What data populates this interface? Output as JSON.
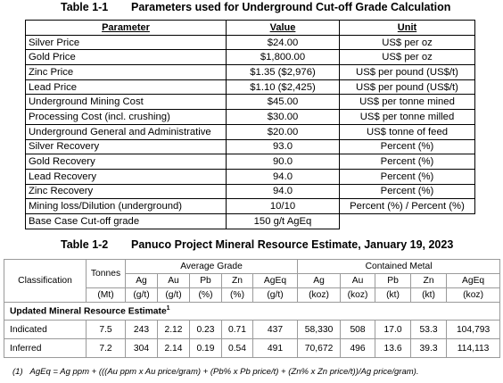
{
  "table1": {
    "label": "Table 1-1",
    "title": "Parameters used for Underground Cut-off Grade Calculation",
    "headers": [
      "Parameter",
      "Value",
      "Unit"
    ],
    "rows": [
      [
        "Silver Price",
        "$24.00",
        "US$ per oz"
      ],
      [
        "Gold Price",
        "$1,800.00",
        "US$ per oz"
      ],
      [
        "Zinc Price",
        "$1.35 ($2,976)",
        "US$ per pound (US$/t)"
      ],
      [
        "Lead Price",
        "$1.10 ($2,425)",
        "US$ per pound (US$/t)"
      ],
      [
        "Underground Mining Cost",
        "$45.00",
        "US$ per tonne mined"
      ],
      [
        "Processing Cost (incl. crushing)",
        "$30.00",
        "US$ per tonne milled"
      ],
      [
        "Underground General and Administrative",
        "$20.00",
        "US$ tonne of feed"
      ],
      [
        "Silver Recovery",
        "93.0",
        "Percent (%)"
      ],
      [
        "Gold Recovery",
        "90.0",
        "Percent (%)"
      ],
      [
        "Lead Recovery",
        "94.0",
        "Percent (%)"
      ],
      [
        "Zinc Recovery",
        "94.0",
        "Percent (%)"
      ],
      [
        "Mining loss/Dilution (underground)",
        "10/10",
        "Percent (%) / Percent (%)"
      ],
      [
        "Base Case Cut-off grade",
        "150 g/t AgEq"
      ]
    ]
  },
  "table2": {
    "label": "Table 1-2",
    "title": "Panuco Project Mineral Resource Estimate, January 19, 2023",
    "header": {
      "classification": "Classification",
      "tonnes": "Tonnes",
      "average_grade": "Average Grade",
      "contained_metal": "Contained Metal"
    },
    "grade_columns": [
      "Ag",
      "Au",
      "Pb",
      "Zn",
      "AgEq"
    ],
    "metal_columns": [
      "Ag",
      "Au",
      "Pb",
      "Zn",
      "AgEq"
    ],
    "units": [
      "(Mt)",
      "(g/t)",
      "(g/t)",
      "(%)",
      "(%)",
      "(g/t)",
      "(koz)",
      "(koz)",
      "(kt)",
      "(kt)",
      "(koz)"
    ],
    "section": {
      "text": "Updated Mineral Resource Estimate",
      "superscript": "1"
    },
    "rows": [
      {
        "classification": "Indicated",
        "values": [
          "7.5",
          "243",
          "2.12",
          "0.23",
          "0.71",
          "437",
          "58,330",
          "508",
          "17.0",
          "53.3",
          "104,793"
        ]
      },
      {
        "classification": "Inferred",
        "values": [
          "7.2",
          "304",
          "2.14",
          "0.19",
          "0.54",
          "491",
          "70,672",
          "496",
          "13.6",
          "39.3",
          "114,113"
        ]
      }
    ]
  },
  "footnote": {
    "marker": "(1)",
    "text": "AgEq = Ag ppm + (((Au ppm x Au price/gram) + (Pb% x Pb price/t) + (Zn% x Zn price/t))/Ag price/gram)."
  }
}
